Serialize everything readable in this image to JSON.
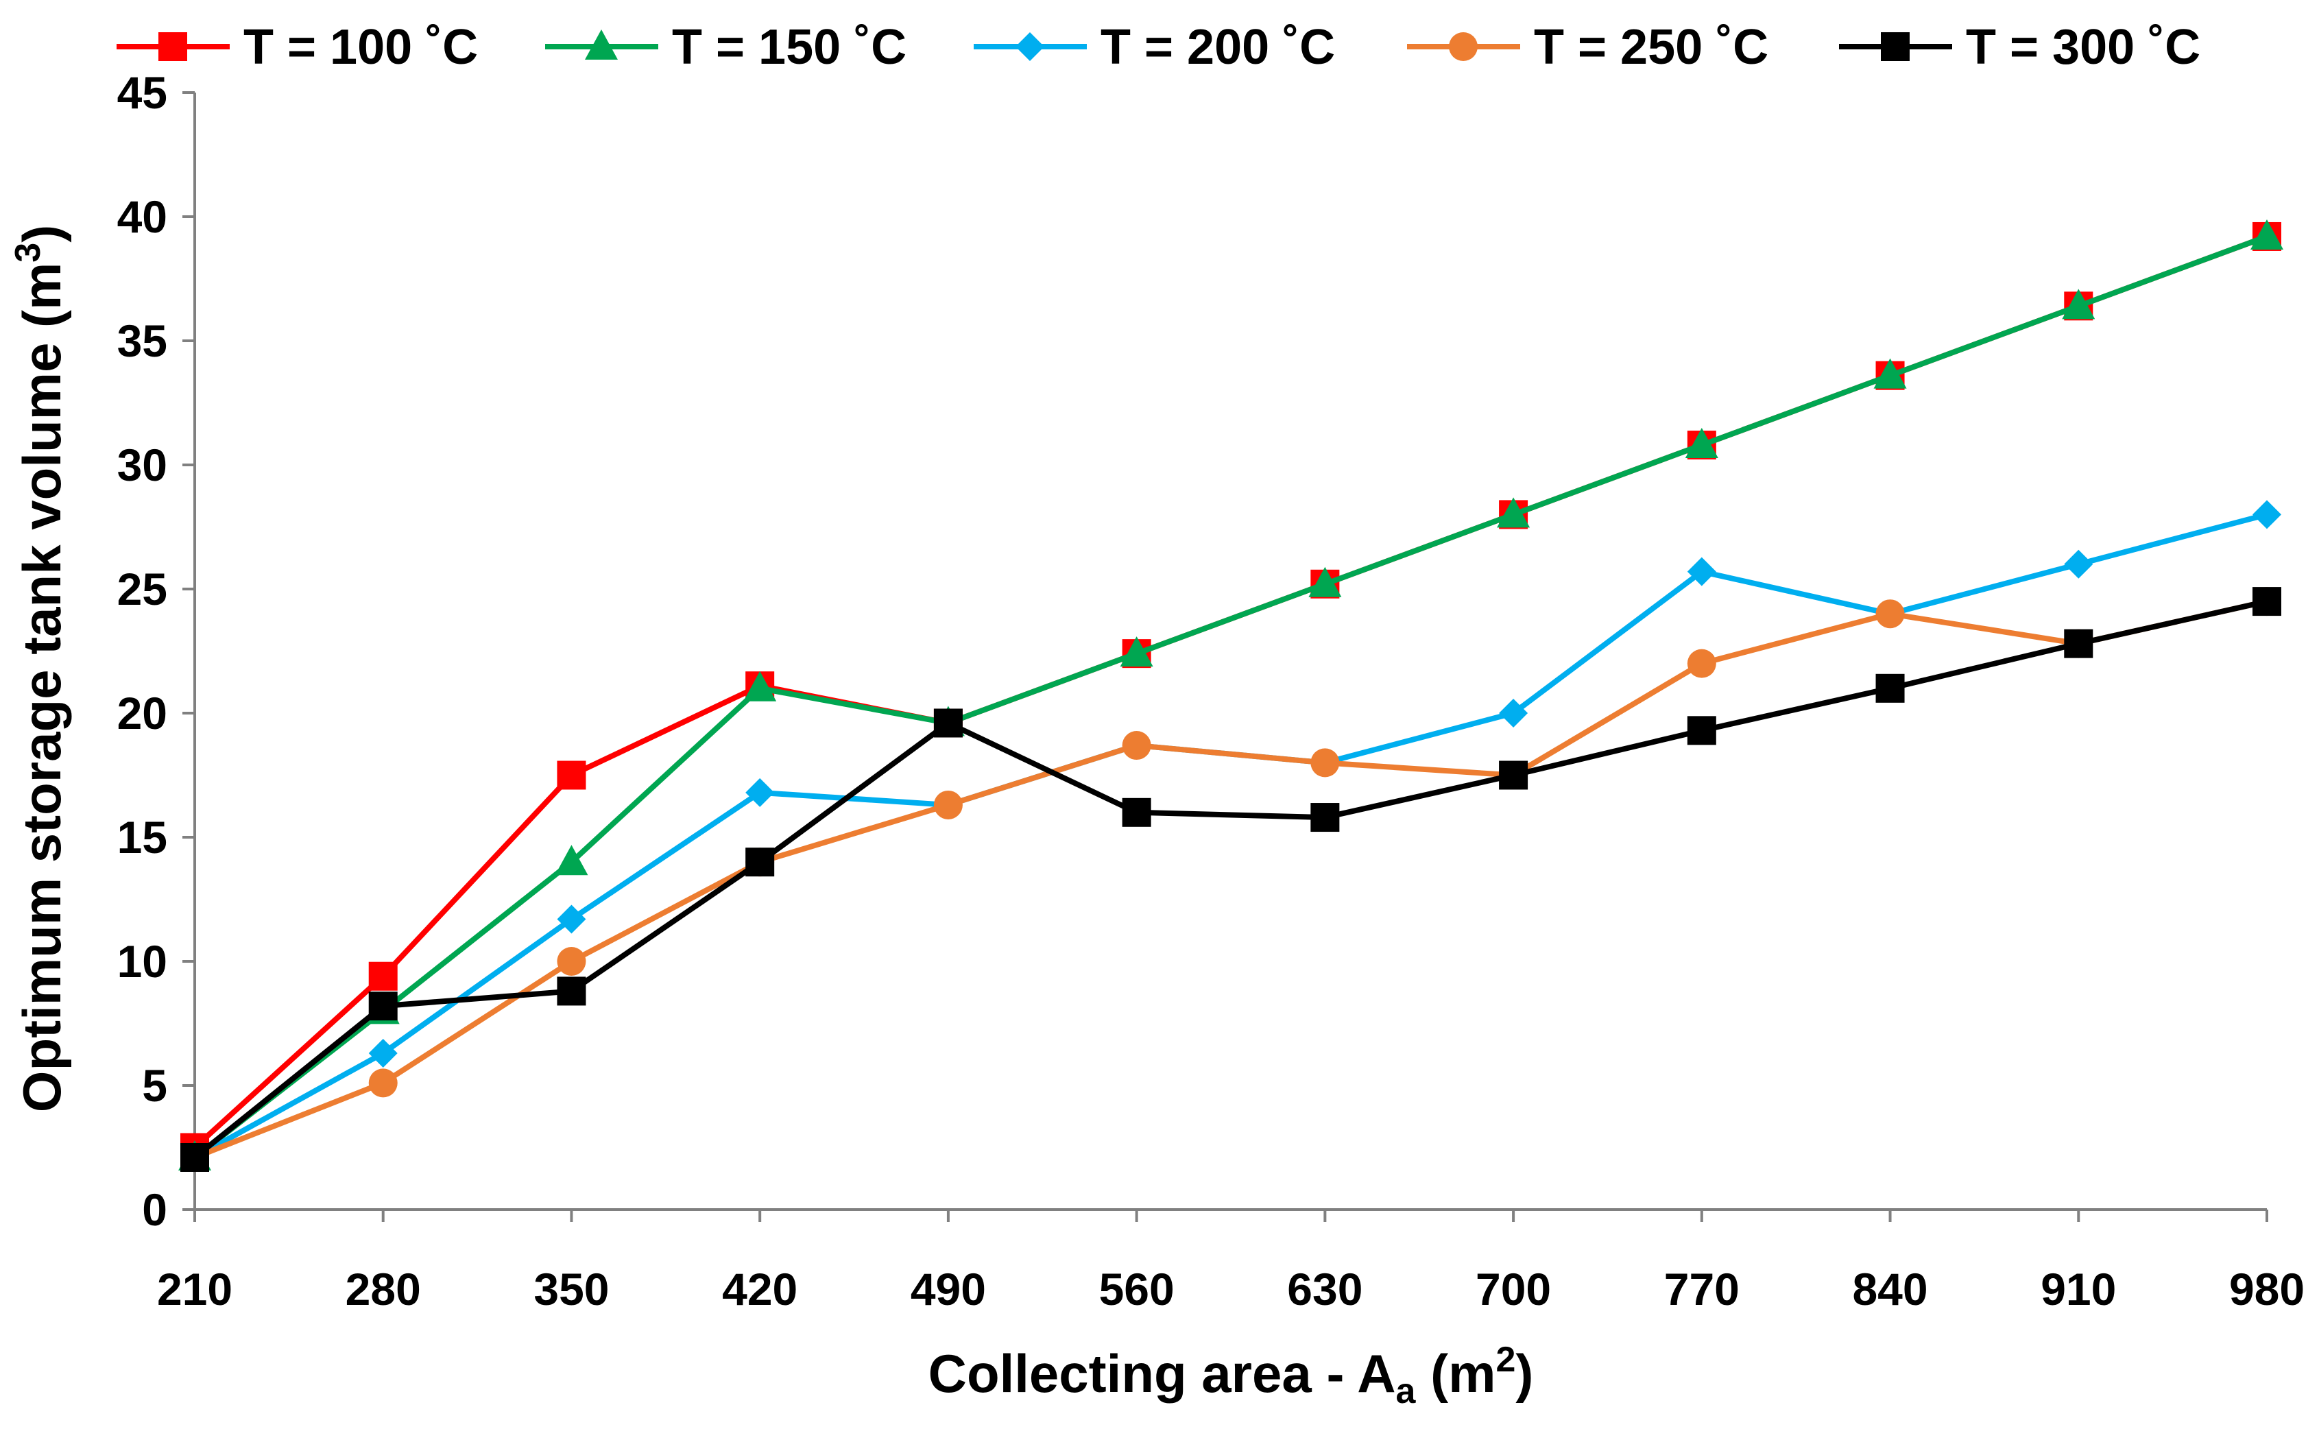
{
  "chart_data": {
    "type": "line",
    "title": "",
    "xlabel": "Collecting area - A",
    "xlabel_sub": "a",
    "xlabel_unit_open": " (m",
    "xlabel_unit_sup": "2",
    "xlabel_unit_close": ")",
    "ylabel": "Optimum storage tank volume (m",
    "ylabel_sup": "3",
    "ylabel_close": ")",
    "categories": [
      "210",
      "280",
      "350",
      "420",
      "490",
      "560",
      "630",
      "700",
      "770",
      "840",
      "910",
      "980"
    ],
    "ylim": [
      0,
      45
    ],
    "yticks": [
      "0",
      "5",
      "10",
      "15",
      "20",
      "25",
      "30",
      "35",
      "40",
      "45"
    ],
    "grid": false,
    "legend_position": "top",
    "series": [
      {
        "name": "T = 100 ˚C",
        "color": "#FF0000",
        "marker": "square",
        "values": [
          2.5,
          9.4,
          17.5,
          21.1,
          19.6,
          22.4,
          25.2,
          28.0,
          30.8,
          33.6,
          36.4,
          39.2
        ]
      },
      {
        "name": "T = 150 ˚C",
        "color": "#00A651",
        "marker": "triangle",
        "values": [
          2.1,
          8.0,
          14.0,
          21.0,
          19.6,
          22.4,
          25.2,
          28.0,
          30.8,
          33.6,
          36.4,
          39.2
        ]
      },
      {
        "name": "T = 200 ˚C",
        "color": "#00AEEF",
        "marker": "diamond",
        "values": [
          2.1,
          6.3,
          11.7,
          16.8,
          16.3,
          18.7,
          18.0,
          20.0,
          25.7,
          24.0,
          26.0,
          28.0
        ]
      },
      {
        "name": "T = 250 ˚C",
        "color": "#ED7D31",
        "marker": "circle",
        "values": [
          2.1,
          5.1,
          10.0,
          14.0,
          16.3,
          18.7,
          18.0,
          17.5,
          22.0,
          24.0,
          22.8,
          24.5
        ]
      },
      {
        "name": "T = 300 ˚C",
        "color": "#000000",
        "marker": "square",
        "values": [
          2.1,
          8.2,
          8.8,
          14.0,
          19.6,
          16.0,
          15.8,
          17.5,
          19.3,
          21.0,
          22.8,
          24.5
        ]
      }
    ]
  }
}
